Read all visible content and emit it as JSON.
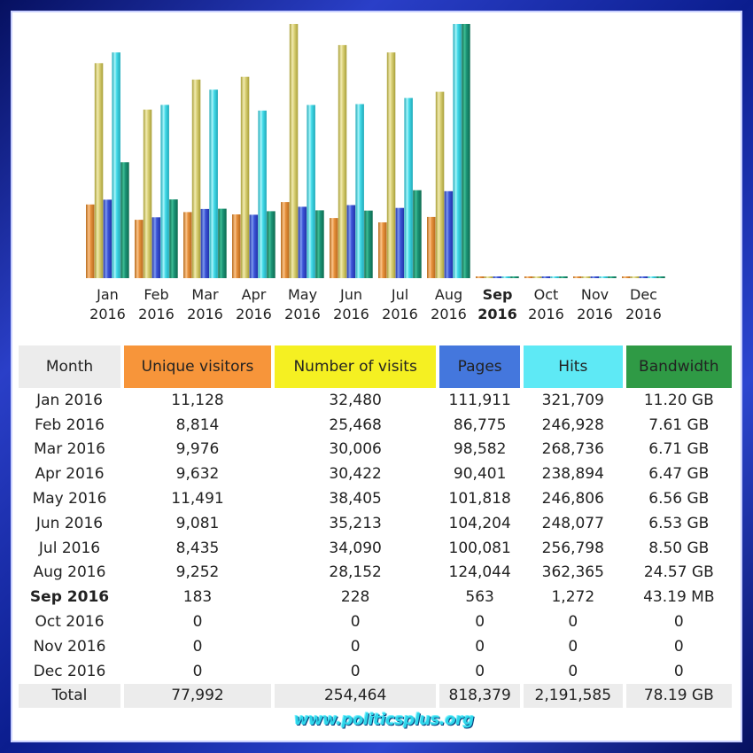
{
  "watermark": "www.politicsplus.org",
  "colors": {
    "unique_visitors": "#f7953a",
    "visits": "#f5f022",
    "pages": "#4477dd",
    "hits": "#5ee9f5",
    "bandwidth": "#2f9a45"
  },
  "chart_data": {
    "type": "bar",
    "categories": [
      "Jan 2016",
      "Feb 2016",
      "Mar 2016",
      "Apr 2016",
      "May 2016",
      "Jun 2016",
      "Jul 2016",
      "Aug 2016",
      "Sep 2016",
      "Oct 2016",
      "Nov 2016",
      "Dec 2016"
    ],
    "tick_labels": [
      {
        "month": "Jan",
        "year": "2016"
      },
      {
        "month": "Feb",
        "year": "2016"
      },
      {
        "month": "Mar",
        "year": "2016"
      },
      {
        "month": "Apr",
        "year": "2016"
      },
      {
        "month": "May",
        "year": "2016"
      },
      {
        "month": "Jun",
        "year": "2016"
      },
      {
        "month": "Jul",
        "year": "2016"
      },
      {
        "month": "Aug",
        "year": "2016"
      },
      {
        "month": "Sep",
        "year": "2016"
      },
      {
        "month": "Oct",
        "year": "2016"
      },
      {
        "month": "Nov",
        "year": "2016"
      },
      {
        "month": "Dec",
        "year": "2016"
      }
    ],
    "current_index": 8,
    "series": [
      {
        "values": [
          11128,
          8814,
          9976,
          9632,
          11491,
          9081,
          8435,
          9252,
          183,
          0,
          0,
          0
        ]
      },
      {
        "values": [
          32480,
          25468,
          30006,
          30422,
          38405,
          35213,
          34090,
          28152,
          228,
          0,
          0,
          0
        ]
      },
      {
        "values": [
          111911,
          86775,
          98582,
          90401,
          101818,
          104204,
          100081,
          124044,
          563,
          0,
          0,
          0
        ]
      },
      {
        "values": [
          321709,
          246928,
          268736,
          238894,
          246806,
          248077,
          256798,
          362365,
          1272,
          0,
          0,
          0
        ]
      },
      {
        "values": [
          11.2,
          7.61,
          6.71,
          6.47,
          6.56,
          6.53,
          8.5,
          24.57,
          0.042,
          0,
          0,
          0
        ]
      }
    ]
  },
  "table": {
    "headers": {
      "month": "Month",
      "unique_visitors": "Unique visitors",
      "visits": "Number of visits",
      "pages": "Pages",
      "hits": "Hits",
      "bandwidth": "Bandwidth"
    },
    "rows": [
      {
        "month": "Jan 2016",
        "uv": "11,128",
        "nv": "32,480",
        "pg": "111,911",
        "ht": "321,709",
        "bw": "11.20 GB"
      },
      {
        "month": "Feb 2016",
        "uv": "8,814",
        "nv": "25,468",
        "pg": "86,775",
        "ht": "246,928",
        "bw": "7.61 GB"
      },
      {
        "month": "Mar 2016",
        "uv": "9,976",
        "nv": "30,006",
        "pg": "98,582",
        "ht": "268,736",
        "bw": "6.71 GB"
      },
      {
        "month": "Apr 2016",
        "uv": "9,632",
        "nv": "30,422",
        "pg": "90,401",
        "ht": "238,894",
        "bw": "6.47 GB"
      },
      {
        "month": "May 2016",
        "uv": "11,491",
        "nv": "38,405",
        "pg": "101,818",
        "ht": "246,806",
        "bw": "6.56 GB"
      },
      {
        "month": "Jun 2016",
        "uv": "9,081",
        "nv": "35,213",
        "pg": "104,204",
        "ht": "248,077",
        "bw": "6.53 GB"
      },
      {
        "month": "Jul 2016",
        "uv": "8,435",
        "nv": "34,090",
        "pg": "100,081",
        "ht": "256,798",
        "bw": "8.50 GB"
      },
      {
        "month": "Aug 2016",
        "uv": "9,252",
        "nv": "28,152",
        "pg": "124,044",
        "ht": "362,365",
        "bw": "24.57 GB"
      },
      {
        "month": "Sep 2016",
        "uv": "183",
        "nv": "228",
        "pg": "563",
        "ht": "1,272",
        "bw": "43.19 MB"
      },
      {
        "month": "Oct 2016",
        "uv": "0",
        "nv": "0",
        "pg": "0",
        "ht": "0",
        "bw": "0"
      },
      {
        "month": "Nov 2016",
        "uv": "0",
        "nv": "0",
        "pg": "0",
        "ht": "0",
        "bw": "0"
      },
      {
        "month": "Dec 2016",
        "uv": "0",
        "nv": "0",
        "pg": "0",
        "ht": "0",
        "bw": "0"
      }
    ],
    "total": {
      "month": "Total",
      "uv": "77,992",
      "nv": "254,464",
      "pg": "818,379",
      "ht": "2,191,585",
      "bw": "78.19 GB"
    }
  }
}
